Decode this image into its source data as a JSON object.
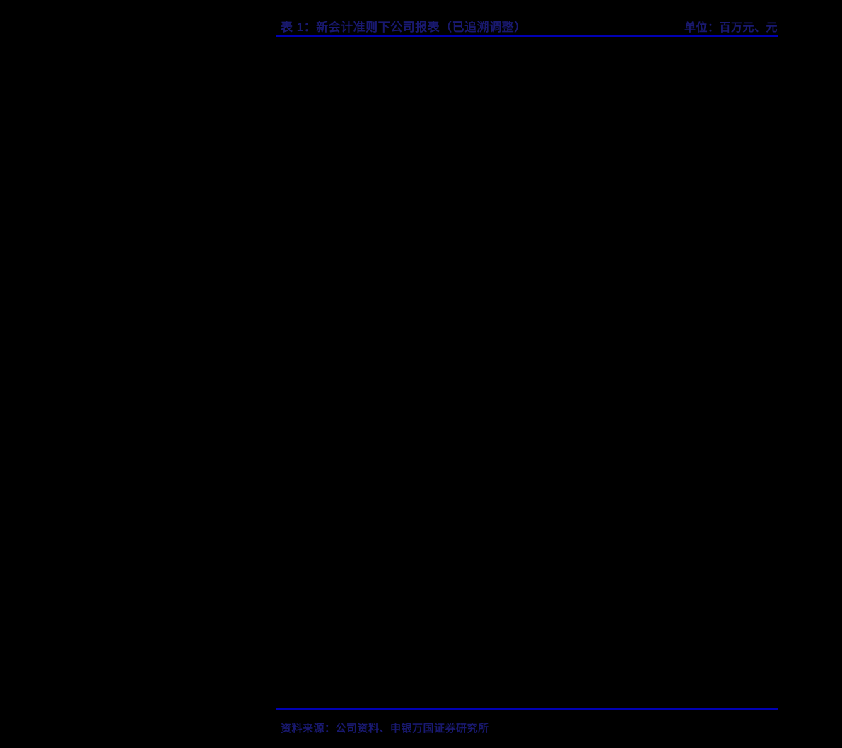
{
  "table": {
    "caption": "表 1：新会计准则下公司报表（已追溯调整）",
    "unit_label": "单位：百万元、元"
  },
  "footer": {
    "source": "资料来源：公司资料、申银万国证券研究所"
  },
  "colors": {
    "background": "#000000",
    "rule": "#0000B3",
    "text": "#191970"
  }
}
